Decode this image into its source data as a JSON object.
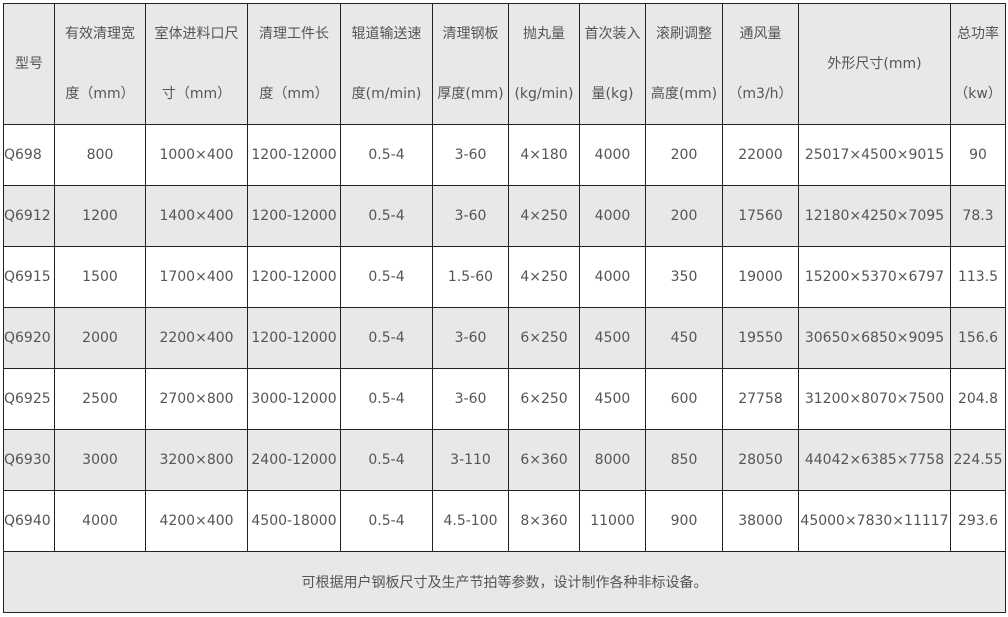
{
  "headers": [
    {
      "l1": "型号",
      "l2": ""
    },
    {
      "l1": "有效清理宽",
      "l2": "度（mm）"
    },
    {
      "l1": "室体进料口尺",
      "l2": "寸（mm）"
    },
    {
      "l1": "清理工件长",
      "l2": "度（mm）"
    },
    {
      "l1": "辊道输送速",
      "l2": "度(m/min)"
    },
    {
      "l1": "清理钢板",
      "l2": "厚度(mm)"
    },
    {
      "l1": "抛丸量",
      "l2": "(kg/min)"
    },
    {
      "l1": "首次装入",
      "l2": "量(kg)"
    },
    {
      "l1": "滚刷调整",
      "l2": "高度(mm)"
    },
    {
      "l1": "通风量",
      "l2": "（m3/h）"
    },
    {
      "l1": "外形尺寸(mm)",
      "l2": ""
    },
    {
      "l1": "总功率",
      "l2": "（kw）"
    }
  ],
  "rows": [
    [
      "Q698",
      "800",
      "1000×400",
      "1200-12000",
      "0.5-4",
      "3-60",
      "4×180",
      "4000",
      "200",
      "22000",
      "25017×4500×9015",
      "90"
    ],
    [
      "Q6912",
      "1200",
      "1400×400",
      "1200-12000",
      "0.5-4",
      "3-60",
      "4×250",
      "4000",
      "200",
      "17560",
      "12180×4250×7095",
      "78.3"
    ],
    [
      "Q6915",
      "1500",
      "1700×400",
      "1200-12000",
      "0.5-4",
      "1.5-60",
      "4×250",
      "4000",
      "350",
      "19000",
      "15200×5370×6797",
      "113.5"
    ],
    [
      "Q6920",
      "2000",
      "2200×400",
      "1200-12000",
      "0.5-4",
      "3-60",
      "6×250",
      "4500",
      "450",
      "19550",
      "30650×6850×9095",
      "156.6"
    ],
    [
      "Q6925",
      "2500",
      "2700×800",
      "3000-12000",
      "0.5-4",
      "3-60",
      "6×250",
      "4500",
      "600",
      "27758",
      "31200×8070×7500",
      "204.8"
    ],
    [
      "Q6930",
      "3000",
      "3200×800",
      "2400-12000",
      "0.5-4",
      "3-110",
      "6×360",
      "8000",
      "850",
      "28050",
      "44042×6385×7758",
      "224.55"
    ],
    [
      "Q6940",
      "4000",
      "4200×400",
      "4500-18000",
      "0.5-4",
      "4.5-100",
      "8×360",
      "11000",
      "900",
      "38000",
      "45000×7830×11117",
      "293.6"
    ]
  ],
  "footer": "可根据用户钢板尺寸及生产节拍等参数，设计制作各种非标设备。"
}
